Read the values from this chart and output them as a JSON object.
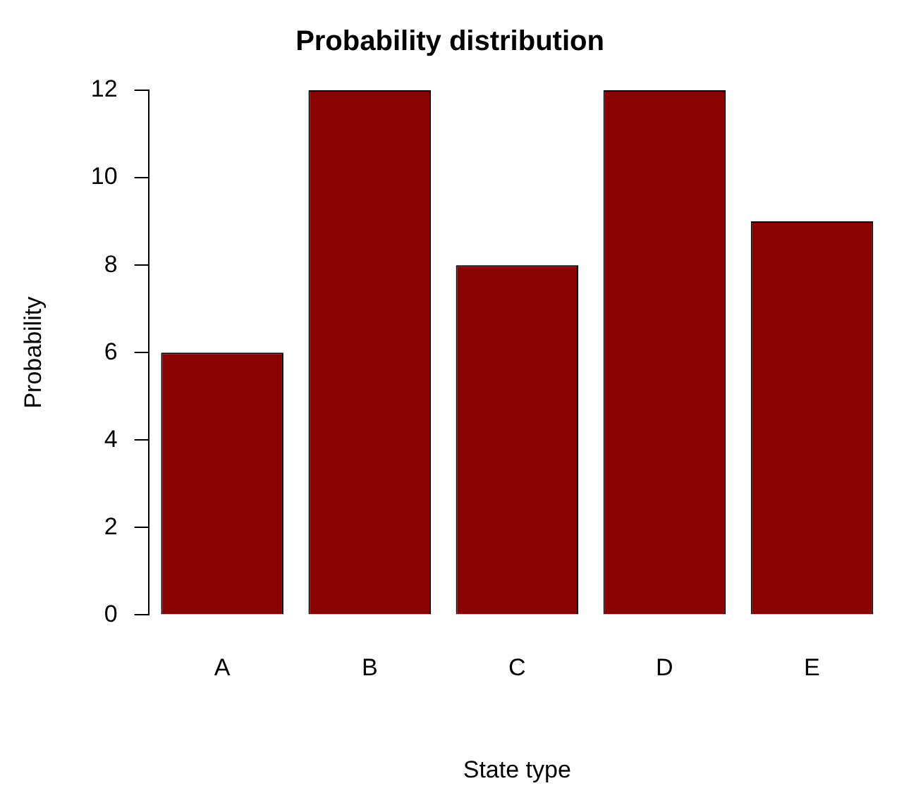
{
  "chart_data": {
    "type": "bar",
    "title": "Probability distribution",
    "xlabel": "State type",
    "ylabel": "Probability",
    "categories": [
      "A",
      "B",
      "C",
      "D",
      "E"
    ],
    "values": [
      6,
      12,
      8,
      12,
      9
    ],
    "color": "#8b0000",
    "ylim": [
      0,
      12
    ],
    "yticks": [
      0,
      2,
      4,
      6,
      8,
      10,
      12
    ],
    "grid": false,
    "legend": false
  }
}
